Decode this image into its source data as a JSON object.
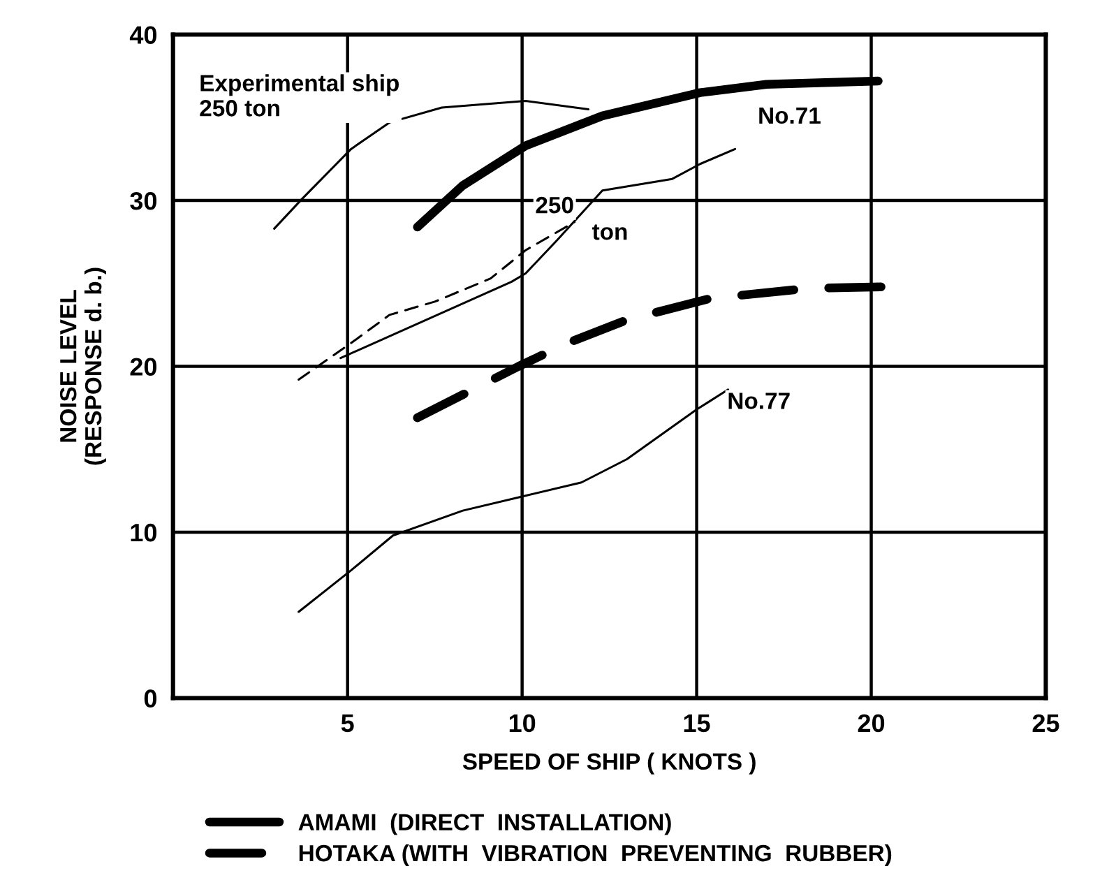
{
  "chart_data": {
    "type": "line",
    "xlabel": "SPEED OF SHIP ( KNOTS )",
    "ylabel": "NOISE LEVEL\n(RESPONSE d. b.)",
    "xlim": [
      0,
      25
    ],
    "xticks": [
      5,
      10,
      15,
      20,
      25
    ],
    "ylim": [
      0,
      40
    ],
    "yticks": [
      0,
      10,
      20,
      30,
      40
    ],
    "grid": true,
    "legend": "bottom",
    "marker": "none",
    "series": [
      {
        "color": "#000000",
        "line_style": "solid",
        "x": [
          2.9,
          3.7,
          5.1,
          6.2,
          7.7,
          10.1,
          11.9
        ],
        "values": [
          28.3,
          30.1,
          33.1,
          34.7,
          35.6,
          36.0,
          35.5
        ]
      },
      {
        "name": "AMAMI  (DIRECT  INSTALLATION)",
        "color": "#000000",
        "line_style": "solid",
        "x": [
          7.0,
          8.3,
          10.1,
          12.3,
          15.1,
          17.0,
          20.2
        ],
        "values": [
          28.4,
          30.9,
          33.3,
          35.1,
          36.5,
          37.0,
          37.2
        ]
      },
      {
        "color": "#000000",
        "line_style": "dashed",
        "x": [
          3.6,
          5.1,
          6.2,
          7.5,
          9.1,
          10.1,
          11.5
        ],
        "values": [
          19.2,
          21.4,
          23.1,
          23.9,
          25.3,
          27.0,
          28.7
        ]
      },
      {
        "color": "#000000",
        "line_style": "solid",
        "x": [
          4.8,
          9.7,
          10.1,
          11.0,
          12.3,
          14.3,
          15.1,
          16.1
        ],
        "values": [
          20.5,
          25.1,
          25.6,
          27.6,
          30.6,
          31.3,
          32.2,
          33.1
        ]
      },
      {
        "name": "HOTAKA (WITH  VIBRATION  PREVENTING  RUBBER)",
        "color": "#000000",
        "line_style": "dashed",
        "x": [
          7.0,
          9.9,
          11.3,
          13.0,
          15.4,
          18.2,
          20.5
        ],
        "values": [
          16.9,
          20.0,
          21.4,
          22.8,
          24.1,
          24.7,
          24.8
        ]
      },
      {
        "color": "#000000",
        "line_style": "solid",
        "x": [
          3.6,
          5.1,
          6.3,
          8.3,
          10.1,
          11.7,
          13.0,
          15.0,
          15.9
        ],
        "values": [
          5.2,
          7.7,
          9.8,
          11.3,
          12.2,
          13.0,
          14.4,
          17.4,
          18.6
        ]
      }
    ],
    "annotations": [
      "Experimental ship\n250 ton",
      "250",
      "ton",
      "No.71",
      "No.77"
    ]
  }
}
